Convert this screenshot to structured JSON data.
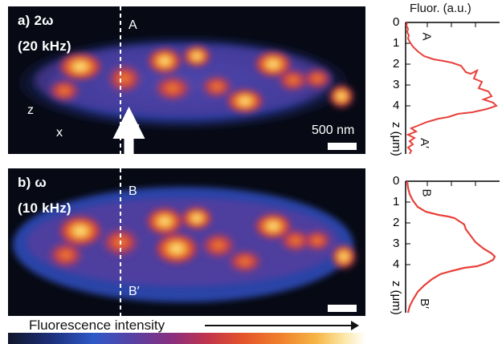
{
  "panels": [
    {
      "label": "a) 2ω",
      "frequency": "(20 kHz)",
      "top_marker": "A",
      "bottom_marker": "A′",
      "scalebar_label": "500 nm",
      "axis_z": "z",
      "axis_x": "x"
    },
    {
      "label": "b) ω",
      "frequency": "(10 kHz)",
      "top_marker": "B",
      "bottom_marker": "B′",
      "scalebar_label": ""
    }
  ],
  "profiles": [
    {
      "title": "Fluor. (a.u.)",
      "y_ticks": [
        "0",
        "1",
        "2",
        "3",
        "4"
      ],
      "y_axis_label": "z (μm)",
      "top_marker": "A",
      "bottom_marker": "A′"
    },
    {
      "title": "",
      "y_ticks": [
        "0",
        "1",
        "2",
        "3",
        "4"
      ],
      "y_axis_label": "z (μm)",
      "top_marker": "B",
      "bottom_marker": "B′"
    }
  ],
  "colorbar": {
    "label": "Fluorescence intensity"
  },
  "colors": {
    "profile_line": "#e8413a",
    "axis": "#000000",
    "marker_line": "#ffffff"
  }
}
